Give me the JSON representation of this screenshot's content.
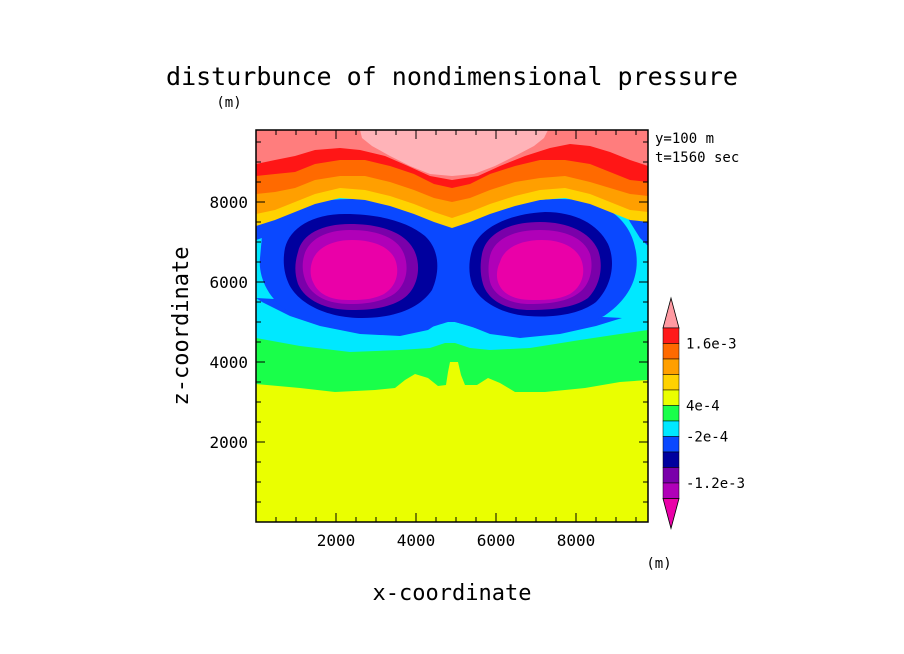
{
  "chart_data": {
    "type": "heatmap",
    "title": "disturbunce of nondimensional pressure",
    "unit_top": "(m)",
    "unit_colorbar": "(m)",
    "annotations": [
      "y=100 m",
      "t=1560 sec"
    ],
    "xlabel": "x-coordinate",
    "ylabel": "z-coordinate",
    "xlim": [
      0,
      9800
    ],
    "ylim": [
      0,
      9800
    ],
    "xticks": [
      2000,
      4000,
      6000,
      8000
    ],
    "yticks": [
      2000,
      4000,
      6000,
      8000
    ],
    "xtick_labels": [
      "2000",
      "4000",
      "6000",
      "8000"
    ],
    "ytick_labels": [
      "2000",
      "4000",
      "6000",
      "8000"
    ],
    "grid": false,
    "colorbar": {
      "labels": [
        "1.6e-3",
        "4e-4",
        "-2e-4",
        "-1.2e-3"
      ],
      "colors_top_to_bottom": [
        "#ff9aa2",
        "#ff1a1a",
        "#ff6a00",
        "#ff9f00",
        "#ffd200",
        "#eaff00",
        "#19ff4a",
        "#00e8ff",
        "#0a48ff",
        "#00009e",
        "#7a00aa",
        "#b000b8",
        "#ea00a8"
      ]
    },
    "level_colors": {
      "l16": "#ffb3b8",
      "l12": "#ff7d7d",
      "l08": "#ff1616",
      "l06": "#ff6a00",
      "l04": "#ff9f00",
      "l02": "#ffd200",
      "l00": "#eaff00",
      "n02": "#19ff4a",
      "n04": "#00e8ff",
      "n08": "#0a48ff",
      "n12": "#00009e",
      "n14": "#7a00aa",
      "n16": "#b000b8",
      "n18": "#ea00a8"
    }
  }
}
